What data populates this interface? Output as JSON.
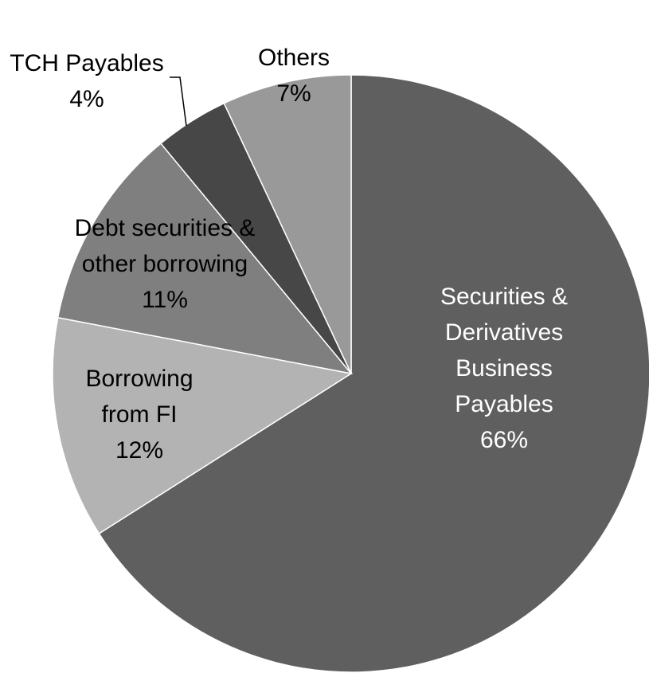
{
  "chart_data": {
    "type": "pie",
    "title": "",
    "start_angle_deg": 0,
    "direction": "clockwise",
    "slices": [
      {
        "label_lines": [
          "Securities &",
          "Derivatives",
          "Business",
          "Payables"
        ],
        "value": 66,
        "value_label": "66%",
        "color": "#5f5f5f",
        "label_color": "#ffffff"
      },
      {
        "label_lines": [
          "Borrowing",
          "from FI"
        ],
        "value": 12,
        "value_label": "12%",
        "color": "#b3b3b3",
        "label_color": "#000000"
      },
      {
        "label_lines": [
          "Debt securities &",
          "other borrowing"
        ],
        "value": 11,
        "value_label": "11%",
        "color": "#7f7f7f",
        "label_color": "#000000"
      },
      {
        "label_lines": [
          "TCH Payables"
        ],
        "value": 4,
        "value_label": "4%",
        "color": "#474747",
        "label_color": "#000000",
        "leader_line": true
      },
      {
        "label_lines": [
          "Others"
        ],
        "value": 7,
        "value_label": "7%",
        "color": "#999999",
        "label_color": "#000000"
      }
    ]
  }
}
